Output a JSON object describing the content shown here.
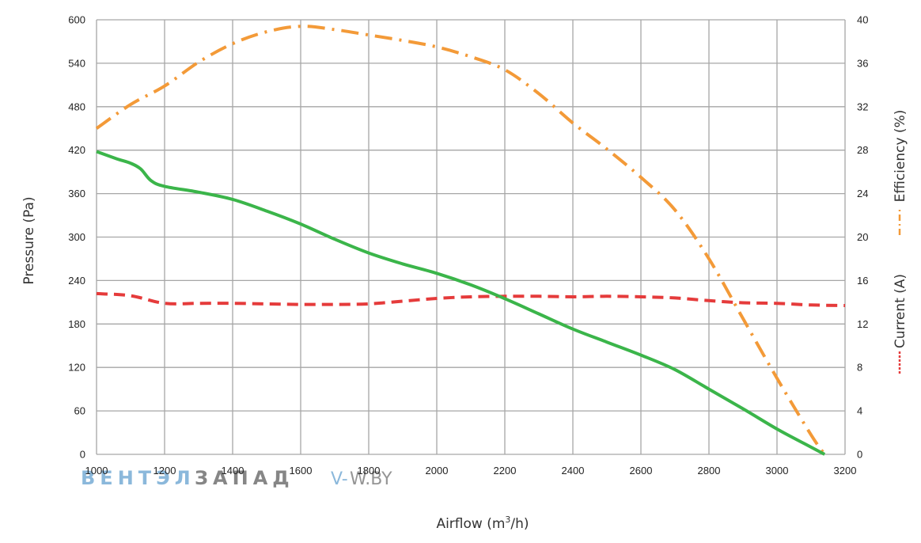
{
  "colors": {
    "grid": "#a6a6a6",
    "pressure": "#3bb54a",
    "efficiency": "#f39a38",
    "current": "#e53b3b",
    "watermark_blue": "#7fb1d8",
    "watermark_gray": "#7a7a7a"
  },
  "watermark": {
    "part1": "ВЕНТЭЛ",
    "part2": "ЗАПАД",
    "site_prefix": "V-",
    "site_rest": "W.BY"
  },
  "chart_data": {
    "type": "line",
    "xlabel_main": "Airflow (m",
    "xlabel_sup": "3",
    "xlabel_tail": "/h)",
    "ylabel_left": "Pressure (Pa)",
    "ylabel_right_top": "Efficiency (%)",
    "ylabel_right_bottom": "Current (A)",
    "xlim": [
      1000,
      3200
    ],
    "ylim_left": [
      0,
      600
    ],
    "ylim_right": [
      0,
      40
    ],
    "x_ticks": [
      "1000",
      "1200",
      "1400",
      "1600",
      "1800",
      "2000",
      "2200",
      "2400",
      "2600",
      "2800",
      "3000",
      "3200"
    ],
    "y_left_ticks": [
      "600",
      "540",
      "480",
      "420",
      "360",
      "300",
      "240",
      "180",
      "120",
      "60",
      "0"
    ],
    "y_right_ticks": [
      "40",
      "36",
      "32",
      "28",
      "24",
      "20",
      "16",
      "12",
      "8",
      "4",
      "0"
    ],
    "grid": true,
    "series": [
      {
        "axis": "left",
        "style": "solid",
        "x": [
          1000,
          1060,
          1100,
          1130,
          1160,
          1200,
          1300,
          1400,
          1500,
          1600,
          1700,
          1800,
          1900,
          2000,
          2100,
          2200,
          2300,
          2400,
          2500,
          2600,
          2700,
          2800,
          2900,
          3000,
          3100,
          3140
        ],
        "y": [
          418,
          408,
          402,
          394,
          378,
          370,
          362,
          352,
          336,
          318,
          297,
          278,
          263,
          250,
          234,
          215,
          194,
          173,
          155,
          137,
          117,
          90,
          63,
          35,
          10,
          0
        ]
      },
      {
        "axis": "right",
        "style": "dashdot",
        "x": [
          1000,
          1100,
          1200,
          1300,
          1400,
          1500,
          1600,
          1700,
          1800,
          1900,
          2000,
          2100,
          2200,
          2300,
          2400,
          2500,
          2600,
          2700,
          2800,
          2900,
          3000,
          3100,
          3140
        ],
        "y": [
          30,
          32.2,
          33.9,
          36.1,
          37.8,
          38.9,
          39.4,
          39.1,
          38.6,
          38.1,
          37.5,
          36.6,
          35.4,
          33.2,
          30.5,
          28.1,
          25.5,
          22.5,
          18,
          12.5,
          7,
          1.8,
          0
        ]
      },
      {
        "axis": "right",
        "style": "dashed",
        "x": [
          1000,
          1100,
          1200,
          1300,
          1400,
          1500,
          1600,
          1700,
          1800,
          1900,
          2000,
          2100,
          2200,
          2300,
          2400,
          2500,
          2600,
          2700,
          2800,
          2900,
          3000,
          3100,
          3200
        ],
        "y": [
          14.8,
          14.6,
          13.9,
          13.9,
          13.9,
          13.85,
          13.8,
          13.8,
          13.85,
          14.1,
          14.35,
          14.5,
          14.55,
          14.55,
          14.5,
          14.55,
          14.5,
          14.4,
          14.15,
          13.95,
          13.9,
          13.75,
          13.7
        ]
      }
    ]
  }
}
